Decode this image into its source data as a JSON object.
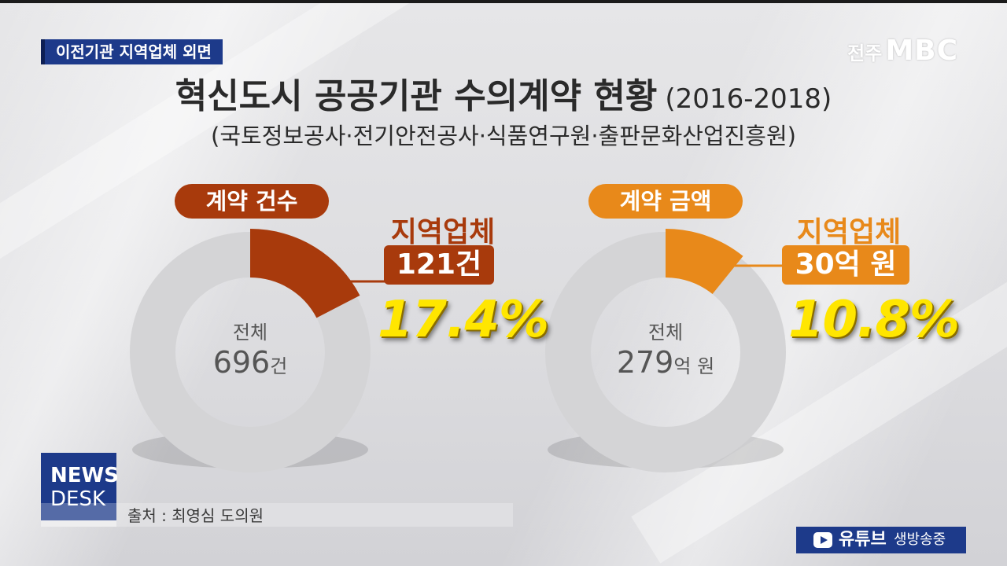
{
  "header": {
    "tag": "이전기관 지역업체 외면",
    "logo_prefix": "전주",
    "logo_main": "MBC"
  },
  "title": "혁신도시 공공기관 수의계약 현황",
  "title_years": "(2016-2018)",
  "subtitle": "(국토정보공사·전기안전공사·식품연구원·출판문화산업진흥원)",
  "colors": {
    "count_accent": "#a83a0c",
    "amount_accent": "#e8891a",
    "ring_gray": "#d4d4d6",
    "highlight_yellow": "#ffe600",
    "brand_blue": "#1d3a8a"
  },
  "chart_data": [
    {
      "type": "pie",
      "title": "계약 건수",
      "total_label": "전체",
      "total_value": 696,
      "total_unit": "건",
      "local_label": "지역업체",
      "local_value": 121,
      "local_unit": "건",
      "local_value_text": "121건",
      "local_share": 0.174,
      "local_share_text": "17.4%"
    },
    {
      "type": "pie",
      "title": "계약 금액",
      "total_label": "전체",
      "total_value": 279,
      "total_unit": "억 원",
      "local_label": "지역업체",
      "local_value": 30,
      "local_unit": "억 원",
      "local_value_text": "30억 원",
      "local_share": 0.108,
      "local_share_text": "10.8%"
    }
  ],
  "footer": {
    "news_line1": "NEWS",
    "news_line2": "DESK",
    "source": "출처 : 최영심 도의원",
    "youtube_label": "유튜브",
    "youtube_sub": "생방송중"
  }
}
